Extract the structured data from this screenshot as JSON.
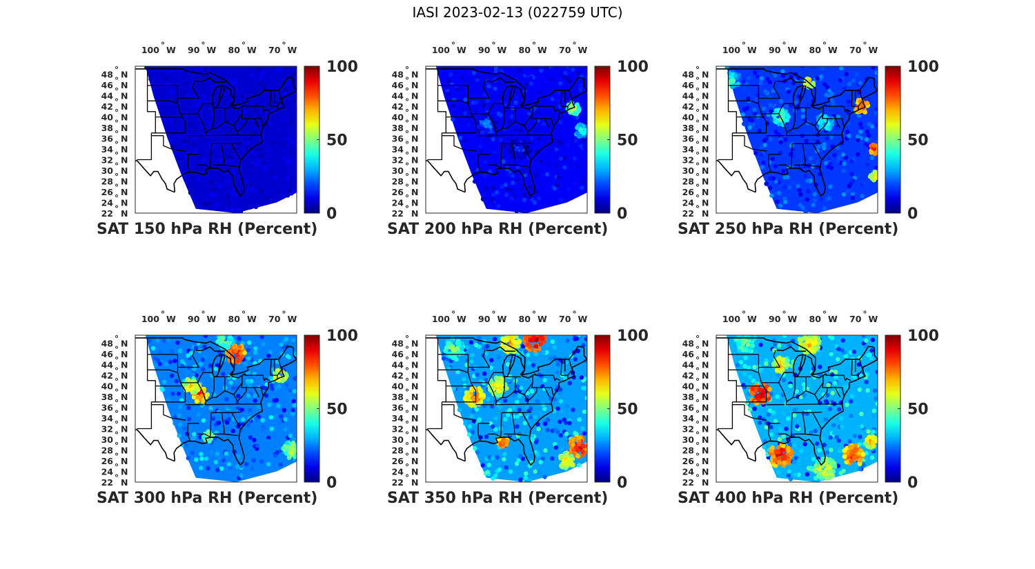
{
  "title": "IASI 2023-02-13 (022759 UTC)",
  "chart_data": {
    "type": "heatmap",
    "shared": {
      "lon_ticks": [
        {
          "value": -100,
          "label": "100",
          "suffix": "W"
        },
        {
          "value": -90,
          "label": "90",
          "suffix": "W"
        },
        {
          "value": -80,
          "label": "80",
          "suffix": "W"
        },
        {
          "value": -70,
          "label": "70",
          "suffix": "W"
        }
      ],
      "lat_ticks": [
        {
          "value": 48,
          "label": "48",
          "suffix": "N"
        },
        {
          "value": 46,
          "label": "46",
          "suffix": "N"
        },
        {
          "value": 44,
          "label": "44",
          "suffix": "N"
        },
        {
          "value": 42,
          "label": "42",
          "suffix": "N"
        },
        {
          "value": 40,
          "label": "40",
          "suffix": "N"
        },
        {
          "value": 38,
          "label": "38",
          "suffix": "N"
        },
        {
          "value": 36,
          "label": "36",
          "suffix": "N"
        },
        {
          "value": 34,
          "label": "34",
          "suffix": "N"
        },
        {
          "value": 32,
          "label": "32",
          "suffix": "N"
        },
        {
          "value": 30,
          "label": "30",
          "suffix": "N"
        },
        {
          "value": 28,
          "label": "28",
          "suffix": "N"
        },
        {
          "value": 26,
          "label": "26",
          "suffix": "N"
        },
        {
          "value": 24,
          "label": "24",
          "suffix": "N"
        },
        {
          "value": 22,
          "label": "22",
          "suffix": "N"
        }
      ],
      "colorbar": {
        "min": 0,
        "max": 100,
        "ticks": [
          "0",
          "50",
          "100"
        ],
        "colormap": "jet"
      },
      "xlim": [
        -107,
        -67
      ],
      "ylim": [
        22,
        49.5
      ]
    },
    "panels": [
      {
        "pressure": 150,
        "title": "SAT 150 hPa RH (Percent)",
        "background_rh": 8,
        "features": []
      },
      {
        "pressure": 200,
        "title": "SAT 200 hPa RH (Percent)",
        "background_rh": 12,
        "features": [
          {
            "lon": -70.5,
            "lat": 41.5,
            "rh": 60,
            "r": 1.2
          },
          {
            "lon": -68.5,
            "lat": 37.5,
            "rh": 45,
            "r": 1.2
          },
          {
            "lon": -92,
            "lat": 38.5,
            "rh": 28,
            "r": 2.0
          },
          {
            "lon": -84,
            "lat": 34,
            "rh": 22,
            "r": 1.8
          }
        ]
      },
      {
        "pressure": 250,
        "title": "SAT 250 hPa RH (Percent)",
        "background_rh": 18,
        "features": [
          {
            "lon": -103,
            "lat": 47,
            "rh": 45,
            "r": 1.5
          },
          {
            "lon": -71,
            "lat": 42,
            "rh": 85,
            "r": 1.3
          },
          {
            "lon": -84,
            "lat": 46.5,
            "rh": 70,
            "r": 1.0
          },
          {
            "lon": -67.8,
            "lat": 34,
            "rh": 90,
            "r": 0.9
          },
          {
            "lon": -67.8,
            "lat": 29,
            "rh": 70,
            "r": 0.9
          },
          {
            "lon": -91,
            "lat": 40,
            "rh": 55,
            "r": 1.5
          },
          {
            "lon": -80,
            "lat": 39,
            "rh": 45,
            "r": 1.5
          }
        ]
      },
      {
        "pressure": 300,
        "title": "SAT 300 hPa RH (Percent)",
        "background_rh": 25,
        "features": [
          {
            "lon": -82,
            "lat": 46,
            "rh": 90,
            "r": 1.8
          },
          {
            "lon": -91,
            "lat": 38.5,
            "rh": 85,
            "r": 1.5
          },
          {
            "lon": -93,
            "lat": 40,
            "rh": 70,
            "r": 1.5
          },
          {
            "lon": -71,
            "lat": 42,
            "rh": 75,
            "r": 1.2
          },
          {
            "lon": -68.5,
            "lat": 28,
            "rh": 60,
            "r": 1.5
          },
          {
            "lon": -85,
            "lat": 48.5,
            "rh": 55,
            "r": 1.5
          },
          {
            "lon": -89,
            "lat": 30.5,
            "rh": 60,
            "r": 1.0
          }
        ]
      },
      {
        "pressure": 350,
        "title": "SAT 350 hPa RH (Percent)",
        "background_rh": 28,
        "features": [
          {
            "lon": -80,
            "lat": 48.5,
            "rh": 95,
            "r": 2.0
          },
          {
            "lon": -86,
            "lat": 48,
            "rh": 75,
            "r": 1.8
          },
          {
            "lon": -95,
            "lat": 38,
            "rh": 80,
            "r": 1.8
          },
          {
            "lon": -89,
            "lat": 40,
            "rh": 70,
            "r": 1.8
          },
          {
            "lon": -69,
            "lat": 28.5,
            "rh": 90,
            "r": 2.0
          },
          {
            "lon": -72,
            "lat": 26,
            "rh": 70,
            "r": 1.5
          },
          {
            "lon": -88,
            "lat": 29.5,
            "rh": 85,
            "r": 1.0
          },
          {
            "lon": -100,
            "lat": 47,
            "rh": 55,
            "r": 1.8
          }
        ]
      },
      {
        "pressure": 400,
        "title": "SAT 400 hPa RH (Percent)",
        "background_rh": 30,
        "features": [
          {
            "lon": -96,
            "lat": 38.5,
            "rh": 95,
            "r": 2.0
          },
          {
            "lon": -91,
            "lat": 27,
            "rh": 90,
            "r": 2.2
          },
          {
            "lon": -73,
            "lat": 27,
            "rh": 85,
            "r": 2.0
          },
          {
            "lon": -80,
            "lat": 24.5,
            "rh": 65,
            "r": 2.0
          },
          {
            "lon": -84,
            "lat": 48,
            "rh": 70,
            "r": 2.0
          },
          {
            "lon": -91,
            "lat": 44,
            "rh": 70,
            "r": 1.5
          },
          {
            "lon": -100,
            "lat": 48,
            "rh": 55,
            "r": 1.8
          },
          {
            "lon": -68.5,
            "lat": 29.5,
            "rh": 75,
            "r": 1.2
          }
        ]
      }
    ]
  }
}
